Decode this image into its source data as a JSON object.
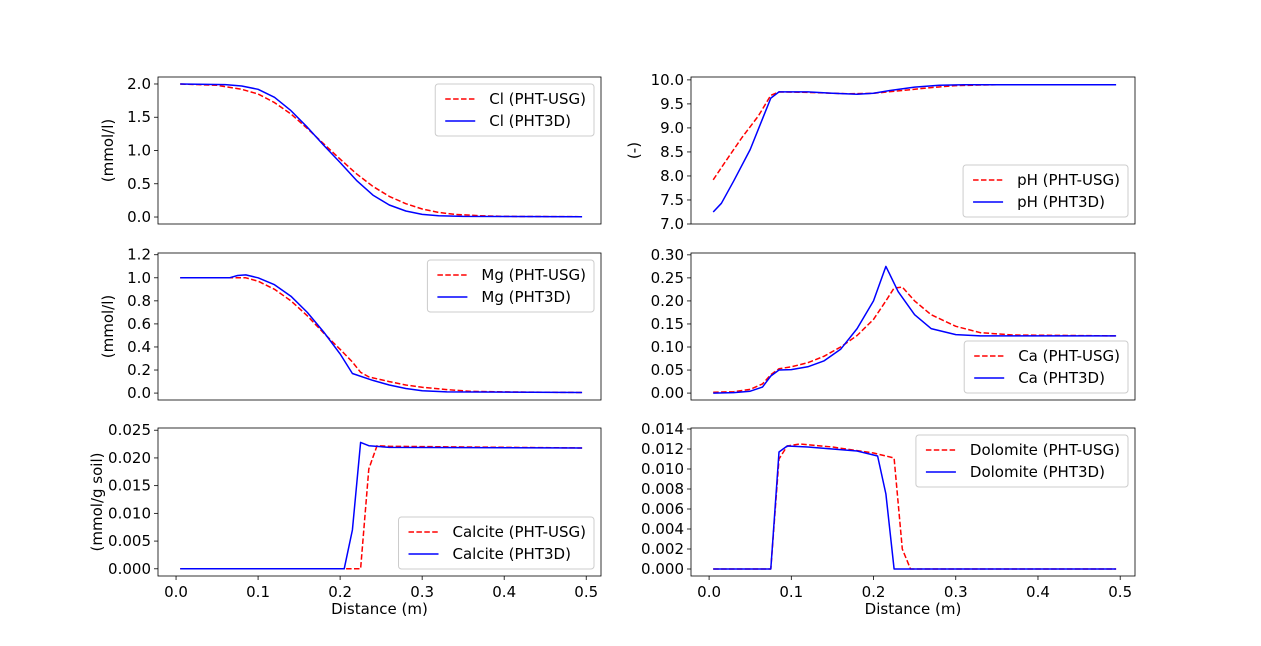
{
  "chart_data": [
    {
      "type": "line",
      "id": "cl",
      "ylabel": "(mmol/l)",
      "xlabel": "",
      "xlim": [
        -0.022,
        0.518
      ],
      "ylim": [
        -0.105,
        2.105
      ],
      "yticks": [
        0,
        0.5,
        1.0,
        1.5,
        2.0
      ],
      "ytick_labels": [
        "0.0",
        "0.5",
        "1.0",
        "1.5",
        "2.0"
      ],
      "xticks": [],
      "xtick_labels": [],
      "legend": "top-right",
      "series": [
        {
          "name": "Cl (PHT-USG)",
          "color": "#ff0000",
          "dash": true,
          "x": [
            0.005,
            0.05,
            0.08,
            0.1,
            0.12,
            0.14,
            0.16,
            0.18,
            0.2,
            0.22,
            0.24,
            0.26,
            0.28,
            0.3,
            0.32,
            0.34,
            0.37,
            0.4,
            0.495
          ],
          "y": [
            2.0,
            1.98,
            1.92,
            1.85,
            1.72,
            1.55,
            1.33,
            1.1,
            0.87,
            0.65,
            0.46,
            0.31,
            0.2,
            0.12,
            0.07,
            0.04,
            0.02,
            0.01,
            0.005
          ]
        },
        {
          "name": "Cl (PHT3D)",
          "color": "#0000ff",
          "dash": false,
          "x": [
            0.005,
            0.06,
            0.08,
            0.1,
            0.12,
            0.14,
            0.16,
            0.18,
            0.2,
            0.22,
            0.24,
            0.26,
            0.28,
            0.3,
            0.32,
            0.35,
            0.495
          ],
          "y": [
            2.0,
            1.99,
            1.97,
            1.92,
            1.8,
            1.6,
            1.35,
            1.08,
            0.82,
            0.55,
            0.33,
            0.18,
            0.09,
            0.04,
            0.02,
            0.01,
            0.005
          ]
        }
      ]
    },
    {
      "type": "line",
      "id": "ph",
      "ylabel": "(-)",
      "xlabel": "",
      "xlim": [
        -0.022,
        0.518
      ],
      "ylim": [
        7.0,
        10.06
      ],
      "yticks": [
        7.0,
        7.5,
        8.0,
        8.5,
        9.0,
        9.5,
        10.0
      ],
      "ytick_labels": [
        "7.0",
        "7.5",
        "8.0",
        "8.5",
        "9.0",
        "9.5",
        "10.0"
      ],
      "xticks": [],
      "xtick_labels": [],
      "legend": "lower-right",
      "series": [
        {
          "name": "pH (PHT-USG)",
          "color": "#ff0000",
          "dash": true,
          "x": [
            0.005,
            0.02,
            0.04,
            0.06,
            0.075,
            0.085,
            0.12,
            0.17,
            0.2,
            0.23,
            0.27,
            0.3,
            0.35,
            0.495
          ],
          "y": [
            7.92,
            8.3,
            8.8,
            9.25,
            9.68,
            9.75,
            9.74,
            9.71,
            9.72,
            9.77,
            9.84,
            9.88,
            9.9,
            9.9
          ]
        },
        {
          "name": "pH (PHT3D)",
          "color": "#0000ff",
          "dash": false,
          "x": [
            0.005,
            0.015,
            0.03,
            0.05,
            0.075,
            0.085,
            0.12,
            0.15,
            0.18,
            0.2,
            0.22,
            0.25,
            0.28,
            0.31,
            0.495
          ],
          "y": [
            7.25,
            7.43,
            7.9,
            8.55,
            9.62,
            9.75,
            9.75,
            9.72,
            9.7,
            9.72,
            9.78,
            9.85,
            9.89,
            9.9,
            9.9
          ]
        }
      ]
    },
    {
      "type": "line",
      "id": "mg",
      "ylabel": "(mmol/l)",
      "xlabel": "",
      "xlim": [
        -0.022,
        0.518
      ],
      "ylim": [
        -0.06,
        1.215
      ],
      "yticks": [
        0,
        0.2,
        0.4,
        0.6,
        0.8,
        1.0,
        1.2
      ],
      "ytick_labels": [
        "0.0",
        "0.2",
        "0.4",
        "0.6",
        "0.8",
        "1.0",
        "1.2"
      ],
      "xticks": [],
      "xtick_labels": [],
      "legend": "top-right",
      "series": [
        {
          "name": "Mg (PHT-USG)",
          "color": "#ff0000",
          "dash": true,
          "x": [
            0.005,
            0.07,
            0.085,
            0.1,
            0.12,
            0.14,
            0.16,
            0.18,
            0.2,
            0.215,
            0.225,
            0.235,
            0.26,
            0.28,
            0.3,
            0.33,
            0.36,
            0.4,
            0.495
          ],
          "y": [
            1.0,
            1.0,
            1.0,
            0.97,
            0.9,
            0.8,
            0.67,
            0.52,
            0.38,
            0.27,
            0.18,
            0.14,
            0.1,
            0.07,
            0.05,
            0.03,
            0.015,
            0.01,
            0.005
          ]
        },
        {
          "name": "Mg (PHT3D)",
          "color": "#0000ff",
          "dash": false,
          "x": [
            0.005,
            0.065,
            0.075,
            0.085,
            0.1,
            0.12,
            0.14,
            0.16,
            0.18,
            0.2,
            0.215,
            0.24,
            0.26,
            0.28,
            0.3,
            0.33,
            0.495
          ],
          "y": [
            1.0,
            1.0,
            1.02,
            1.025,
            1.0,
            0.94,
            0.84,
            0.7,
            0.53,
            0.34,
            0.17,
            0.11,
            0.07,
            0.04,
            0.02,
            0.01,
            0.005
          ]
        }
      ]
    },
    {
      "type": "line",
      "id": "ca",
      "ylabel": "",
      "xlabel": "",
      "xlim": [
        -0.022,
        0.518
      ],
      "ylim": [
        -0.015,
        0.304
      ],
      "yticks": [
        0,
        0.05,
        0.1,
        0.15,
        0.2,
        0.25,
        0.3
      ],
      "ytick_labels": [
        "0.00",
        "0.05",
        "0.10",
        "0.15",
        "0.20",
        "0.25",
        "0.30"
      ],
      "xticks": [],
      "xtick_labels": [],
      "legend": "lower-right",
      "series": [
        {
          "name": "Ca (PHT-USG)",
          "color": "#ff0000",
          "dash": true,
          "x": [
            0.005,
            0.03,
            0.05,
            0.065,
            0.075,
            0.085,
            0.1,
            0.12,
            0.14,
            0.16,
            0.18,
            0.2,
            0.215,
            0.225,
            0.235,
            0.25,
            0.27,
            0.3,
            0.33,
            0.37,
            0.495
          ],
          "y": [
            0.002,
            0.003,
            0.008,
            0.02,
            0.04,
            0.053,
            0.057,
            0.066,
            0.08,
            0.1,
            0.125,
            0.16,
            0.2,
            0.228,
            0.23,
            0.2,
            0.17,
            0.145,
            0.131,
            0.126,
            0.124
          ]
        },
        {
          "name": "Ca (PHT3D)",
          "color": "#0000ff",
          "dash": false,
          "x": [
            0.005,
            0.03,
            0.05,
            0.065,
            0.075,
            0.085,
            0.1,
            0.12,
            0.14,
            0.16,
            0.18,
            0.2,
            0.215,
            0.23,
            0.25,
            0.27,
            0.3,
            0.33,
            0.495
          ],
          "y": [
            0.0,
            0.001,
            0.004,
            0.013,
            0.037,
            0.05,
            0.051,
            0.057,
            0.07,
            0.095,
            0.14,
            0.2,
            0.275,
            0.22,
            0.17,
            0.14,
            0.127,
            0.124,
            0.124
          ]
        }
      ]
    },
    {
      "type": "line",
      "id": "calcite",
      "ylabel": "(mmol/g soil)",
      "xlabel": "Distance (m)",
      "xlim": [
        -0.022,
        0.518
      ],
      "ylim": [
        -0.0013,
        0.0254
      ],
      "yticks": [
        0,
        0.005,
        0.01,
        0.015,
        0.02,
        0.025
      ],
      "ytick_labels": [
        "0.000",
        "0.005",
        "0.010",
        "0.015",
        "0.020",
        "0.025"
      ],
      "xticks": [
        0,
        0.1,
        0.2,
        0.3,
        0.4,
        0.5
      ],
      "xtick_labels": [
        "0.0",
        "0.1",
        "0.2",
        "0.3",
        "0.4",
        "0.5"
      ],
      "legend": "lower-right",
      "series": [
        {
          "name": "Calcite (PHT-USG)",
          "color": "#ff0000",
          "dash": true,
          "x": [
            0.005,
            0.225,
            0.235,
            0.245,
            0.26,
            0.495
          ],
          "y": [
            0,
            0,
            0.018,
            0.0222,
            0.0221,
            0.0218
          ]
        },
        {
          "name": "Calcite (PHT3D)",
          "color": "#0000ff",
          "dash": false,
          "x": [
            0.005,
            0.205,
            0.215,
            0.225,
            0.235,
            0.26,
            0.495
          ],
          "y": [
            0,
            0,
            0.007,
            0.0228,
            0.0222,
            0.0219,
            0.0218
          ]
        }
      ]
    },
    {
      "type": "line",
      "id": "dolomite",
      "ylabel": "",
      "xlabel": "Distance (m)",
      "xlim": [
        -0.022,
        0.518
      ],
      "ylim": [
        -0.0007,
        0.0141
      ],
      "yticks": [
        0,
        0.002,
        0.004,
        0.006,
        0.008,
        0.01,
        0.012,
        0.014
      ],
      "ytick_labels": [
        "0.000",
        "0.002",
        "0.004",
        "0.006",
        "0.008",
        "0.010",
        "0.012",
        "0.014"
      ],
      "xticks": [
        0,
        0.1,
        0.2,
        0.3,
        0.4,
        0.5
      ],
      "xtick_labels": [
        "0.0",
        "0.1",
        "0.2",
        "0.3",
        "0.4",
        "0.5"
      ],
      "legend": "top-right",
      "series": [
        {
          "name": "Dolomite (PHT-USG)",
          "color": "#ff0000",
          "dash": true,
          "x": [
            0.005,
            0.075,
            0.085,
            0.095,
            0.11,
            0.15,
            0.2,
            0.225,
            0.235,
            0.245,
            0.495
          ],
          "y": [
            0,
            0,
            0.011,
            0.0123,
            0.0125,
            0.0122,
            0.0116,
            0.0111,
            0.002,
            0,
            0
          ]
        },
        {
          "name": "Dolomite (PHT3D)",
          "color": "#0000ff",
          "dash": false,
          "x": [
            0.005,
            0.075,
            0.085,
            0.095,
            0.12,
            0.15,
            0.18,
            0.205,
            0.215,
            0.225,
            0.495
          ],
          "y": [
            0,
            0,
            0.0117,
            0.0123,
            0.0122,
            0.012,
            0.0118,
            0.0113,
            0.0075,
            0,
            0
          ]
        }
      ]
    }
  ]
}
